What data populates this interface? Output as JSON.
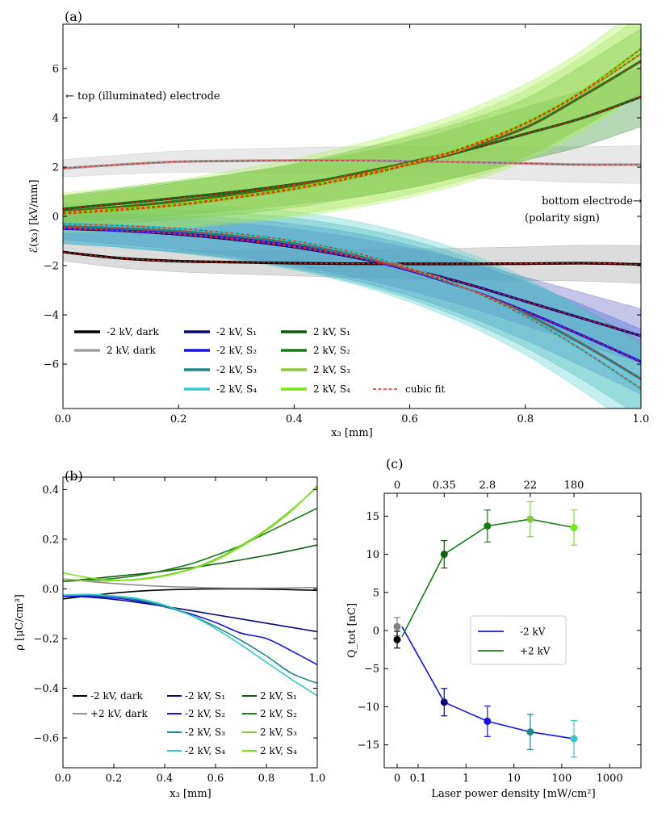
{
  "chart_data": [
    {
      "panel": "(a)",
      "type": "line",
      "xlabel": "x₃ [mm]",
      "ylabel": "ℰ(x₃) [kV/mm]",
      "xlim": [
        0,
        1
      ],
      "ylim": [
        -7.8,
        7.8
      ],
      "xticks": [
        0.0,
        0.2,
        0.4,
        0.6,
        0.8,
        1.0
      ],
      "xtick_labels": [
        "0.0",
        "0.2",
        "0.4",
        "0.6",
        "0.8",
        "1.0"
      ],
      "yticks": [
        -6,
        -4,
        -2,
        0,
        2,
        4,
        6
      ],
      "ytick_labels": [
        "−6",
        "−4",
        "−2",
        "0",
        "2",
        "4",
        "6"
      ],
      "x": [
        0,
        0.1,
        0.2,
        0.3,
        0.4,
        0.5,
        0.6,
        0.7,
        0.8,
        0.9,
        1.0
      ],
      "series": [
        {
          "name": "-2 kV, dark",
          "color": "#000000",
          "band": "#9a9a9a",
          "band_width": 0.35,
          "values": [
            -1.45,
            -1.7,
            -1.82,
            -1.86,
            -1.9,
            -1.92,
            -1.93,
            -1.93,
            -1.92,
            -1.9,
            -1.95
          ]
        },
        {
          "name": "2 kV, dark",
          "color": "#a0a0a0",
          "band": "#bdbdbd",
          "band_width": 0.35,
          "values": [
            1.95,
            2.1,
            2.22,
            2.25,
            2.27,
            2.27,
            2.24,
            2.2,
            2.15,
            2.1,
            2.1
          ]
        },
        {
          "name": "-2 kV, S₁",
          "color": "#0a0a78",
          "band": "#5a5ac0",
          "band_width": 0.5,
          "values": [
            -0.45,
            -0.58,
            -0.73,
            -0.95,
            -1.25,
            -1.65,
            -2.15,
            -2.75,
            -3.45,
            -4.15,
            -4.85
          ]
        },
        {
          "name": "-2 kV, S₂",
          "color": "#1414e6",
          "band": "#3c64dc",
          "band_width": 0.6,
          "values": [
            -0.5,
            -0.58,
            -0.7,
            -0.9,
            -1.2,
            -1.62,
            -2.2,
            -2.95,
            -3.85,
            -4.85,
            -5.9
          ]
        },
        {
          "name": "-2 kV, S₃",
          "color": "#1a8a8a",
          "band": "#3caaaa",
          "band_width": 0.7,
          "values": [
            -0.4,
            -0.48,
            -0.6,
            -0.8,
            -1.1,
            -1.55,
            -2.15,
            -2.95,
            -3.95,
            -5.2,
            -6.6
          ]
        },
        {
          "name": "-2 kV, S₄",
          "color": "#38c8c8",
          "band": "#5ad2d2",
          "band_width": 0.8,
          "values": [
            -0.3,
            -0.38,
            -0.5,
            -0.7,
            -1.0,
            -1.45,
            -2.1,
            -2.95,
            -4.05,
            -5.45,
            -7.0
          ]
        },
        {
          "name": "2 kV, S₁",
          "color": "#0e5c0e",
          "band": "#2e8b2e",
          "band_width": 0.55,
          "values": [
            0.3,
            0.52,
            0.75,
            1.0,
            1.3,
            1.65,
            2.1,
            2.7,
            3.35,
            4.0,
            4.85
          ]
        },
        {
          "name": "2 kV, S₂",
          "color": "#1a7a1a",
          "band": "#3aa03a",
          "band_width": 0.6,
          "values": [
            0.2,
            0.38,
            0.62,
            0.9,
            1.25,
            1.7,
            2.2,
            2.8,
            3.6,
            4.9,
            6.3
          ]
        },
        {
          "name": "2 kV, S₃",
          "color": "#8cc83c",
          "band": "#a8d868",
          "band_width": 0.7,
          "values": [
            0.1,
            0.25,
            0.45,
            0.75,
            1.1,
            1.55,
            2.1,
            2.8,
            3.75,
            5.05,
            6.6
          ]
        },
        {
          "name": "2 kV, S₄",
          "color": "#78e614",
          "band": "#a8f050",
          "band_width": 0.8,
          "values": [
            0.15,
            0.3,
            0.5,
            0.8,
            1.15,
            1.6,
            2.15,
            2.85,
            3.8,
            5.1,
            6.8
          ]
        }
      ],
      "fit_label": "cubic fit",
      "annotations": {
        "top": "← top (illuminated) electrode",
        "bottom_line1": "bottom electrode→",
        "bottom_line2": "(polarity sign)"
      },
      "legend_rows": [
        [
          "-2 kV, dark",
          "-2 kV, S₁",
          "2 kV, S₁"
        ],
        [
          "2 kV, dark",
          "-2 kV, S₂",
          "2 kV, S₂"
        ],
        [
          "",
          "-2 kV, S₃",
          "2 kV, S₃"
        ],
        [
          "",
          "-2 kV, S₄",
          "2 kV, S₄"
        ]
      ]
    },
    {
      "panel": "(b)",
      "type": "line",
      "xlabel": "x₃ [mm]",
      "ylabel": "ρ [μC/cm³]",
      "xlim": [
        0,
        1
      ],
      "ylim": [
        -0.72,
        0.45
      ],
      "xticks": [
        0.0,
        0.2,
        0.4,
        0.6,
        0.8,
        1.0
      ],
      "xtick_labels": [
        "0.0",
        "0.2",
        "0.4",
        "0.6",
        "0.8",
        "1.0"
      ],
      "yticks": [
        -0.6,
        -0.4,
        -0.2,
        0.0,
        0.2,
        0.4
      ],
      "ytick_labels": [
        "−0.6",
        "−0.4",
        "−0.2",
        "0.0",
        "0.2",
        "0.4"
      ],
      "x": [
        0,
        0.1,
        0.2,
        0.3,
        0.4,
        0.5,
        0.6,
        0.7,
        0.8,
        0.9,
        1.0
      ],
      "series": [
        {
          "name": "-2 kV, dark",
          "color": "#000000",
          "values": [
            -0.04,
            -0.028,
            -0.017,
            -0.009,
            -0.004,
            -0.001,
            0.0,
            0.0,
            -0.001,
            -0.003,
            -0.006
          ]
        },
        {
          "name": "+2 kV, dark",
          "color": "#909090",
          "values": [
            0.04,
            0.03,
            0.022,
            0.015,
            0.01,
            0.007,
            0.004,
            0.003,
            0.003,
            0.004,
            0.006
          ]
        },
        {
          "name": "-2 kV, S₁",
          "color": "#0a0a78",
          "values": [
            -0.03,
            -0.033,
            -0.042,
            -0.055,
            -0.07,
            -0.087,
            -0.104,
            -0.121,
            -0.138,
            -0.155,
            -0.172
          ]
        },
        {
          "name": "-2 kV, S₂",
          "color": "#1414e6",
          "values": [
            -0.03,
            -0.03,
            -0.036,
            -0.05,
            -0.072,
            -0.1,
            -0.135,
            -0.178,
            -0.2,
            -0.25,
            -0.305
          ]
        },
        {
          "name": "-2 kV, S₃",
          "color": "#1a8a8a",
          "values": [
            -0.025,
            -0.025,
            -0.03,
            -0.045,
            -0.07,
            -0.105,
            -0.152,
            -0.207,
            -0.27,
            -0.34,
            -0.38
          ]
        },
        {
          "name": "-2 kV, S₄",
          "color": "#38c8c8",
          "values": [
            -0.025,
            -0.022,
            -0.028,
            -0.04,
            -0.065,
            -0.105,
            -0.16,
            -0.225,
            -0.295,
            -0.365,
            -0.43
          ]
        },
        {
          "name": "2 kV, S₁",
          "color": "#0e5c0e",
          "values": [
            0.03,
            0.04,
            0.05,
            0.06,
            0.072,
            0.085,
            0.1,
            0.117,
            0.135,
            0.155,
            0.177
          ]
        },
        {
          "name": "2 kV, S₂",
          "color": "#1a7a1a",
          "values": [
            0.03,
            0.036,
            0.042,
            0.055,
            0.075,
            0.1,
            0.135,
            0.175,
            0.225,
            0.275,
            0.325
          ]
        },
        {
          "name": "2 kV, S₃",
          "color": "#8cc83c",
          "values": [
            0.04,
            0.033,
            0.033,
            0.04,
            0.055,
            0.08,
            0.12,
            0.175,
            0.24,
            0.32,
            0.41
          ]
        },
        {
          "name": "2 kV, S₄",
          "color": "#78e614",
          "values": [
            0.065,
            0.045,
            0.035,
            0.038,
            0.052,
            0.078,
            0.115,
            0.17,
            0.235,
            0.315,
            0.415
          ]
        }
      ]
    },
    {
      "panel": "(c)",
      "type": "line",
      "xlabel": "Laser power density [mW/cm²]",
      "ylabel": "Q_tot [nC]",
      "xscale": "symlog",
      "ylim": [
        -18,
        18
      ],
      "xtick_labels": [
        "0",
        "0.1",
        "1",
        "10",
        "100",
        "1000"
      ],
      "xtick_values": [
        0,
        0.1,
        1,
        10,
        100,
        1000
      ],
      "top_tick_labels": [
        "0",
        "0.35",
        "2.8",
        "22",
        "180"
      ],
      "top_tick_values": [
        0,
        0.35,
        2.8,
        22,
        180
      ],
      "yticks": [
        -15,
        -10,
        -5,
        0,
        5,
        10,
        15
      ],
      "ytick_labels": [
        "−15",
        "−10",
        "−5",
        "0",
        "5",
        "10",
        "15"
      ],
      "series": [
        {
          "name": "-2 kV",
          "color": "#1414e6",
          "x": [
            0,
            0.35,
            2.8,
            22,
            180
          ],
          "values": [
            0.5,
            -9.4,
            -11.9,
            -13.3,
            -14.2
          ],
          "errors": [
            1.2,
            1.8,
            2.0,
            2.3,
            2.4
          ],
          "marker_colors": [
            "#808080",
            "#0a0a78",
            "#1414e6",
            "#1a8a8a",
            "#38c8c8"
          ]
        },
        {
          "name": "+2 kV",
          "color": "#1a7a1a",
          "x": [
            0,
            0.35,
            2.8,
            22,
            180
          ],
          "values": [
            -1.2,
            10.0,
            13.7,
            14.6,
            13.5
          ],
          "errors": [
            1.1,
            1.8,
            2.1,
            2.3,
            2.3
          ],
          "marker_colors": [
            "#000000",
            "#0e5c0e",
            "#1a7a1a",
            "#8cc83c",
            "#78e614"
          ]
        }
      ]
    }
  ]
}
